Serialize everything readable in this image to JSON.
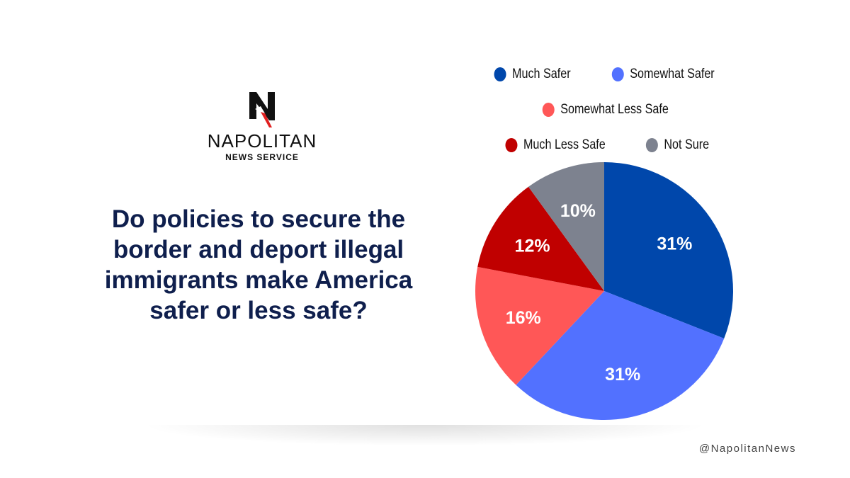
{
  "brand": {
    "name": "NAPOLITAN",
    "sub": "NEWS SERVICE",
    "handle": "@NapolitanNews"
  },
  "chart_data": {
    "type": "pie",
    "title": "Do policies to secure the border and deport illegal immigrants make America safer or less safe?",
    "slices": [
      {
        "label": "Much Safer",
        "value": 31,
        "display": "31%",
        "color": "#0047ab"
      },
      {
        "label": "Somewhat Safer",
        "value": 31,
        "display": "31%",
        "color": "#5271ff"
      },
      {
        "label": "Somewhat Less Safe",
        "value": 16,
        "display": "16%",
        "color": "#ff5757"
      },
      {
        "label": "Much Less Safe",
        "value": 12,
        "display": "12%",
        "color": "#c00000"
      },
      {
        "label": "Not Sure",
        "value": 10,
        "display": "10%",
        "color": "#7d828f"
      }
    ],
    "start": "top",
    "direction": "clockwise",
    "legend_position": "top"
  }
}
